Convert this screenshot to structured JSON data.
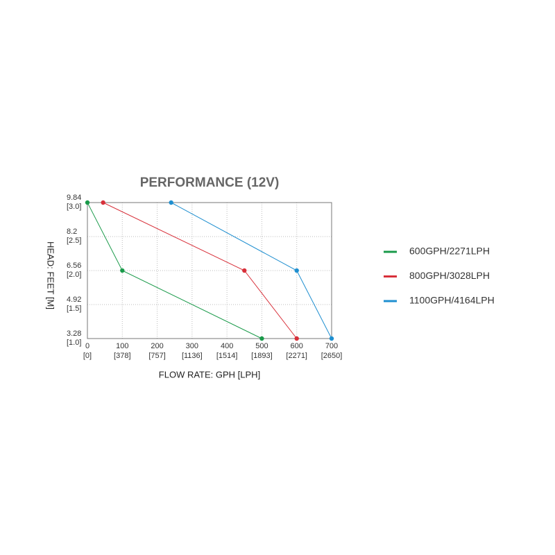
{
  "chart_data": {
    "type": "line",
    "title": "PERFORMANCE (12V)",
    "x_label": "FLOW RATE: GPH [LPH]",
    "y_label": "HEAD: FEET [M]",
    "xlim": [
      0,
      700
    ],
    "ylim": [
      3.28,
      9.84
    ],
    "xticks": [
      0,
      100,
      200,
      300,
      400,
      500,
      600,
      700
    ],
    "xtick_sublabels": [
      "[0]",
      "[378]",
      "[757]",
      "[1136]",
      "[1514]",
      "[1893]",
      "[2271]",
      "[2650]"
    ],
    "yticks": [
      3.28,
      4.92,
      6.56,
      8.2,
      {
        "value": 9.84,
        "label": "9.84"
      }
    ],
    "ytick_sublabels": [
      "[1.0]",
      "[1.5]",
      "[2.0]",
      "[2.5]",
      "[3.0]"
    ],
    "grid": true,
    "series": [
      {
        "name": "600GPH/2271LPH",
        "color": "#1a9a4a",
        "x": [
          0,
          100,
          500
        ],
        "values": [
          9.84,
          6.56,
          3.28
        ]
      },
      {
        "name": "800GPH/3028LPH",
        "color": "#d8303a",
        "x": [
          45,
          450,
          600
        ],
        "values": [
          9.84,
          6.56,
          3.28
        ]
      },
      {
        "name": "1100GPH/4164LPH",
        "color": "#1f8fd0",
        "x": [
          240,
          600,
          700
        ],
        "values": [
          9.84,
          6.56,
          3.28
        ]
      }
    ]
  }
}
